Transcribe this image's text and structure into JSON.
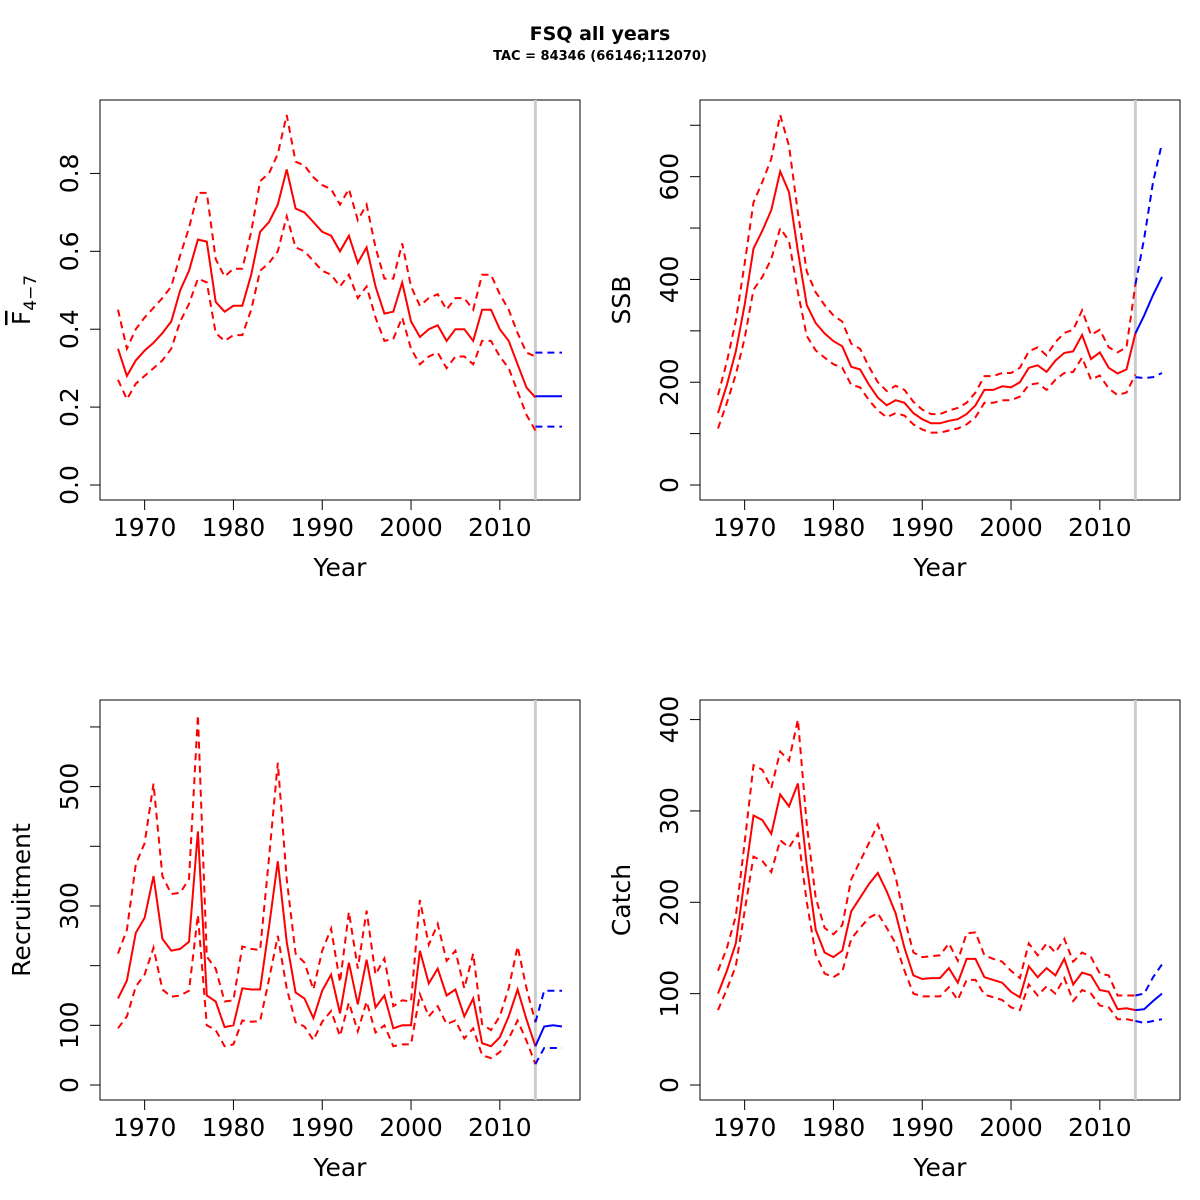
{
  "title": "FSQ all years",
  "subtitle": "TAC = 84346 (66146;112070)",
  "colors": {
    "estimate": "#ff0000",
    "forecast": "#0000ff",
    "divider": "#cccccc",
    "axis": "#000000"
  },
  "chart_data": [
    {
      "type": "line",
      "xlabel": "Year",
      "ylabel_main": "F",
      "ylabel_sub": "4−7",
      "xlim": [
        1967,
        2017
      ],
      "ylim": [
        0,
        0.95
      ],
      "x_ticks": [
        1970,
        1980,
        1990,
        2000,
        2010
      ],
      "y_ticks": [
        0.0,
        0.2,
        0.4,
        0.6,
        0.8
      ],
      "y_tick_labels": [
        "0.0",
        "0.2",
        "0.4",
        "0.6",
        "0.8"
      ],
      "y_minor_ticks": [],
      "divider_year": 2014,
      "grid": false,
      "estimate": {
        "x": [
          1967,
          1968,
          1969,
          1970,
          1971,
          1972,
          1973,
          1974,
          1975,
          1976,
          1977,
          1978,
          1979,
          1980,
          1981,
          1982,
          1983,
          1984,
          1985,
          1986,
          1987,
          1988,
          1989,
          1990,
          1991,
          1992,
          1993,
          1994,
          1995,
          1996,
          1997,
          1998,
          1999,
          2000,
          2001,
          2002,
          2003,
          2004,
          2005,
          2006,
          2007,
          2008,
          2009,
          2010,
          2011,
          2012,
          2013,
          2014
        ],
        "mid": [
          0.35,
          0.28,
          0.32,
          0.345,
          0.365,
          0.39,
          0.42,
          0.5,
          0.55,
          0.63,
          0.625,
          0.47,
          0.445,
          0.46,
          0.46,
          0.54,
          0.65,
          0.675,
          0.72,
          0.81,
          0.71,
          0.7,
          0.675,
          0.65,
          0.64,
          0.6,
          0.64,
          0.57,
          0.61,
          0.51,
          0.44,
          0.445,
          0.52,
          0.42,
          0.38,
          0.4,
          0.41,
          0.37,
          0.4,
          0.4,
          0.37,
          0.45,
          0.45,
          0.4,
          0.37,
          0.31,
          0.25,
          0.225
        ],
        "upper": [
          0.45,
          0.35,
          0.4,
          0.43,
          0.455,
          0.48,
          0.51,
          0.59,
          0.66,
          0.75,
          0.75,
          0.58,
          0.535,
          0.555,
          0.555,
          0.65,
          0.78,
          0.8,
          0.85,
          0.95,
          0.83,
          0.82,
          0.79,
          0.77,
          0.76,
          0.72,
          0.76,
          0.68,
          0.72,
          0.61,
          0.53,
          0.53,
          0.62,
          0.51,
          0.46,
          0.48,
          0.49,
          0.45,
          0.48,
          0.48,
          0.45,
          0.54,
          0.54,
          0.49,
          0.45,
          0.39,
          0.34,
          0.33
        ],
        "lower": [
          0.27,
          0.22,
          0.26,
          0.28,
          0.3,
          0.32,
          0.35,
          0.42,
          0.465,
          0.53,
          0.52,
          0.39,
          0.37,
          0.385,
          0.385,
          0.45,
          0.55,
          0.57,
          0.6,
          0.69,
          0.61,
          0.6,
          0.575,
          0.55,
          0.54,
          0.51,
          0.54,
          0.48,
          0.51,
          0.43,
          0.37,
          0.375,
          0.43,
          0.35,
          0.31,
          0.33,
          0.34,
          0.3,
          0.33,
          0.33,
          0.31,
          0.37,
          0.37,
          0.33,
          0.3,
          0.24,
          0.18,
          0.14
        ]
      },
      "forecast": {
        "x": [
          2014,
          2015,
          2016,
          2017
        ],
        "mid": [
          0.228,
          0.228,
          0.228,
          0.228
        ],
        "upper": [
          0.34,
          0.34,
          0.34,
          0.34
        ],
        "lower": [
          0.15,
          0.15,
          0.15,
          0.15
        ]
      }
    },
    {
      "type": "line",
      "xlabel": "Year",
      "ylabel": "SSB",
      "xlim": [
        1967,
        2017
      ],
      "ylim": [
        0,
        720
      ],
      "x_ticks": [
        1970,
        1980,
        1990,
        2000,
        2010
      ],
      "y_ticks": [
        0,
        200,
        400,
        600
      ],
      "y_tick_labels": [
        "0",
        "200",
        "400",
        "600"
      ],
      "y_minor_ticks": [
        100,
        300,
        500,
        700
      ],
      "divider_year": 2014,
      "grid": false,
      "estimate": {
        "x": [
          1967,
          1968,
          1969,
          1970,
          1971,
          1972,
          1973,
          1974,
          1975,
          1976,
          1977,
          1978,
          1979,
          1980,
          1981,
          1982,
          1983,
          1984,
          1985,
          1986,
          1987,
          1988,
          1989,
          1990,
          1991,
          1992,
          1993,
          1994,
          1995,
          1996,
          1997,
          1998,
          1999,
          2000,
          2001,
          2002,
          2003,
          2004,
          2005,
          2006,
          2007,
          2008,
          2009,
          2010,
          2011,
          2012,
          2013,
          2014
        ],
        "mid": [
          140,
          195,
          260,
          350,
          460,
          495,
          535,
          610,
          570,
          455,
          350,
          315,
          295,
          280,
          270,
          230,
          225,
          195,
          170,
          155,
          165,
          160,
          140,
          128,
          120,
          120,
          125,
          128,
          138,
          155,
          185,
          185,
          192,
          190,
          200,
          228,
          233,
          220,
          242,
          257,
          260,
          292,
          245,
          258,
          228,
          217,
          225,
          295
        ],
        "upper": [
          175,
          240,
          320,
          430,
          550,
          590,
          635,
          720,
          660,
          530,
          415,
          375,
          350,
          330,
          318,
          275,
          265,
          230,
          200,
          183,
          193,
          185,
          162,
          147,
          138,
          138,
          145,
          150,
          160,
          180,
          212,
          212,
          218,
          218,
          228,
          260,
          268,
          252,
          278,
          296,
          302,
          340,
          292,
          302,
          268,
          258,
          268,
          390
        ],
        "lower": [
          110,
          160,
          215,
          285,
          380,
          405,
          440,
          500,
          475,
          375,
          290,
          262,
          248,
          235,
          228,
          195,
          190,
          165,
          145,
          132,
          140,
          135,
          118,
          108,
          102,
          102,
          106,
          110,
          118,
          132,
          160,
          160,
          165,
          165,
          172,
          195,
          198,
          185,
          205,
          218,
          220,
          248,
          205,
          213,
          188,
          175,
          180,
          215
        ]
      },
      "forecast": {
        "x": [
          2014,
          2015,
          2016,
          2017
        ],
        "mid": [
          295,
          330,
          370,
          405
        ],
        "upper": [
          390,
          480,
          590,
          665
        ],
        "lower": [
          210,
          208,
          210,
          218
        ]
      }
    },
    {
      "type": "line",
      "xlabel": "Year",
      "ylabel": "Recruitment",
      "xlim": [
        1967,
        2017
      ],
      "ylim": [
        0,
        620
      ],
      "x_ticks": [
        1970,
        1980,
        1990,
        2000,
        2010
      ],
      "y_ticks": [
        0,
        100,
        300,
        500
      ],
      "y_tick_labels": [
        "0",
        "100",
        "300",
        "500"
      ],
      "y_minor_ticks": [
        200,
        400,
        600
      ],
      "divider_year": 2014,
      "grid": false,
      "estimate": {
        "x": [
          1967,
          1968,
          1969,
          1970,
          1971,
          1972,
          1973,
          1974,
          1975,
          1976,
          1977,
          1978,
          1979,
          1980,
          1981,
          1982,
          1983,
          1984,
          1985,
          1986,
          1987,
          1988,
          1989,
          1990,
          1991,
          1992,
          1993,
          1994,
          1995,
          1996,
          1997,
          1998,
          1999,
          2000,
          2001,
          2002,
          2003,
          2004,
          2005,
          2006,
          2007,
          2008,
          2009,
          2010,
          2011,
          2012,
          2013,
          2014
        ],
        "mid": [
          145,
          175,
          255,
          280,
          350,
          245,
          225,
          228,
          240,
          425,
          150,
          140,
          97,
          100,
          162,
          160,
          160,
          265,
          375,
          240,
          155,
          145,
          112,
          158,
          185,
          120,
          205,
          135,
          210,
          130,
          150,
          95,
          100,
          100,
          225,
          170,
          195,
          150,
          160,
          115,
          145,
          70,
          65,
          80,
          115,
          160,
          110,
          65
        ],
        "upper": [
          220,
          260,
          370,
          405,
          505,
          350,
          320,
          322,
          345,
          620,
          215,
          195,
          140,
          142,
          232,
          228,
          226,
          380,
          540,
          345,
          220,
          205,
          160,
          225,
          262,
          172,
          290,
          195,
          292,
          185,
          212,
          132,
          142,
          140,
          310,
          235,
          270,
          208,
          225,
          162,
          220,
          102,
          92,
          115,
          162,
          232,
          162,
          105
        ],
        "lower": [
          95,
          115,
          165,
          185,
          230,
          160,
          148,
          150,
          158,
          285,
          100,
          92,
          65,
          68,
          108,
          106,
          107,
          177,
          250,
          162,
          105,
          98,
          75,
          106,
          124,
          82,
          138,
          90,
          140,
          88,
          100,
          65,
          68,
          68,
          152,
          115,
          132,
          102,
          108,
          78,
          95,
          50,
          45,
          55,
          78,
          108,
          74,
          35
        ]
      },
      "forecast": {
        "x": [
          2014,
          2015,
          2016,
          2017
        ],
        "mid": [
          65,
          98,
          100,
          98
        ],
        "upper": [
          105,
          158,
          158,
          158
        ],
        "lower": [
          35,
          62,
          62,
          62
        ]
      }
    },
    {
      "type": "line",
      "xlabel": "Year",
      "ylabel": "Catch",
      "xlim": [
        1967,
        2017
      ],
      "ylim": [
        0,
        405
      ],
      "x_ticks": [
        1970,
        1980,
        1990,
        2000,
        2010
      ],
      "y_ticks": [
        0,
        100,
        200,
        300,
        400
      ],
      "y_tick_labels": [
        "0",
        "100",
        "200",
        "300",
        "400"
      ],
      "y_minor_ticks": [],
      "divider_year": 2014,
      "grid": false,
      "estimate": {
        "x": [
          1967,
          1968,
          1969,
          1970,
          1971,
          1972,
          1973,
          1974,
          1975,
          1976,
          1977,
          1978,
          1979,
          1980,
          1981,
          1982,
          1983,
          1984,
          1985,
          1986,
          1987,
          1988,
          1989,
          1990,
          1991,
          1992,
          1993,
          1994,
          1995,
          1996,
          1997,
          1998,
          1999,
          2000,
          2001,
          2002,
          2003,
          2004,
          2005,
          2006,
          2007,
          2008,
          2009,
          2010,
          2011,
          2012,
          2013,
          2014
        ],
        "mid": [
          100,
          125,
          155,
          225,
          295,
          290,
          275,
          318,
          305,
          330,
          240,
          170,
          145,
          140,
          147,
          190,
          205,
          220,
          232,
          212,
          188,
          150,
          120,
          116,
          117,
          117,
          128,
          112,
          138,
          138,
          118,
          115,
          112,
          102,
          96,
          130,
          118,
          128,
          120,
          138,
          110,
          123,
          120,
          104,
          102,
          83,
          84,
          82
        ],
        "upper": [
          125,
          150,
          185,
          265,
          350,
          345,
          325,
          365,
          355,
          400,
          285,
          205,
          172,
          165,
          175,
          225,
          245,
          265,
          285,
          258,
          228,
          182,
          145,
          140,
          141,
          142,
          155,
          136,
          166,
          167,
          142,
          138,
          135,
          125,
          117,
          155,
          142,
          155,
          145,
          160,
          135,
          145,
          140,
          122,
          120,
          98,
          98,
          98
        ],
        "lower": [
          82,
          105,
          130,
          190,
          250,
          245,
          233,
          268,
          260,
          275,
          200,
          143,
          122,
          118,
          124,
          160,
          172,
          183,
          188,
          172,
          155,
          125,
          100,
          97,
          97,
          97,
          107,
          93,
          115,
          115,
          99,
          96,
          93,
          85,
          82,
          110,
          98,
          108,
          100,
          117,
          92,
          104,
          100,
          87,
          85,
          72,
          72,
          70
        ]
      },
      "forecast": {
        "x": [
          2014,
          2015,
          2016,
          2017
        ],
        "mid": [
          82,
          83,
          92,
          100
        ],
        "upper": [
          98,
          100,
          118,
          132
        ],
        "lower": [
          70,
          68,
          70,
          72
        ]
      }
    }
  ]
}
